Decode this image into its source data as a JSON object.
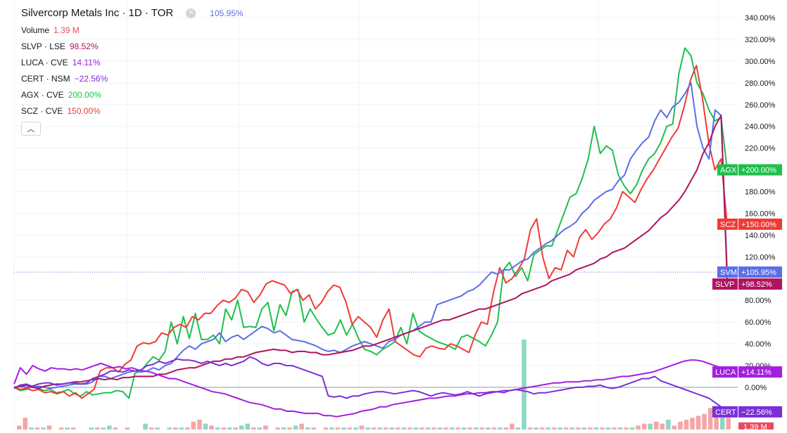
{
  "header": {
    "title": "Silvercorp Metals Inc · 1D · TOR",
    "main_change": "105.95%",
    "main_color": "#5b6ee8"
  },
  "legend": [
    {
      "label": "Volume",
      "value": "1.39 M",
      "color": "#e84a5f"
    },
    {
      "label": "SLVP · LSE",
      "value": "98.52%",
      "color": "#b0135f"
    },
    {
      "label": "LUCA · CVE",
      "value": "14.11%",
      "color": "#a31ee0"
    },
    {
      "label": "CERT · NSM",
      "value": "−22.56%",
      "color": "#7b2fd9"
    },
    {
      "label": "AGX · CVE",
      "value": "200.00%",
      "color": "#1fbf4d"
    },
    {
      "label": "SCZ · CVE",
      "value": "150.00%",
      "color": "#ef3b36"
    }
  ],
  "collapse_icon": "chevron-up-icon",
  "chart_data": {
    "type": "line",
    "ylim": [
      -30,
      345
    ],
    "yticks": [
      "340.00%",
      "320.00%",
      "300.00%",
      "280.00%",
      "260.00%",
      "240.00%",
      "220.00%",
      "200.00%",
      "180.00%",
      "160.00%",
      "140.00%",
      "120.00%",
      "80.00%",
      "60.00%",
      "40.00%",
      "20.00%",
      "0.00%"
    ],
    "ytick_values": [
      340,
      320,
      300,
      280,
      260,
      240,
      220,
      200,
      180,
      160,
      140,
      120,
      80,
      60,
      40,
      20,
      0
    ],
    "reference_value": 105.95,
    "zero_line": 0,
    "series": [
      {
        "name": "AGX",
        "color": "#1fbf4d",
        "tag": "+200.00%",
        "last": 200,
        "values": [
          0,
          -3,
          -2,
          1,
          -1,
          -3,
          -2,
          -5,
          -4,
          -2,
          -6,
          -8,
          -4,
          -7,
          -6,
          -5,
          -5,
          -3,
          -4,
          -10,
          13,
          15,
          22,
          28,
          25,
          33,
          60,
          40,
          65,
          45,
          68,
          44,
          44,
          48,
          40,
          72,
          62,
          80,
          55,
          56,
          55,
          72,
          78,
          52,
          76,
          66,
          88,
          90,
          60,
          72,
          63,
          55,
          48,
          50,
          62,
          48,
          58,
          45,
          35,
          33,
          30,
          35,
          38,
          42,
          55,
          40,
          68,
          52,
          48,
          45,
          42,
          40,
          38,
          35,
          46,
          48,
          45,
          42,
          38,
          48,
          60,
          108,
          115,
          102,
          110,
          98,
          122,
          126,
          130,
          130,
          145,
          160,
          175,
          178,
          192,
          210,
          240,
          215,
          222,
          218,
          195,
          185,
          178,
          186,
          200,
          210,
          215,
          225,
          240,
          242,
          288,
          312,
          305,
          280,
          270,
          255,
          245,
          248,
          200
        ]
      },
      {
        "name": "SCZ",
        "color": "#ef3b36",
        "tag": "+150.00%",
        "last": 150,
        "values": [
          0,
          -2,
          -1,
          -3,
          -2,
          -5,
          -4,
          -6,
          -4,
          -8,
          -5,
          -10,
          -6,
          -2,
          15,
          18,
          18,
          14,
          21,
          25,
          38,
          41,
          40,
          42,
          50,
          48,
          55,
          58,
          55,
          65,
          62,
          68,
          68,
          75,
          80,
          78,
          82,
          90,
          88,
          78,
          85,
          95,
          98,
          96,
          94,
          86,
          90,
          80,
          85,
          72,
          78,
          88,
          94,
          92,
          78,
          58,
          65,
          60,
          55,
          46,
          62,
          72,
          42,
          38,
          34,
          30,
          28,
          36,
          38,
          36,
          35,
          40,
          38,
          35,
          32,
          48,
          60,
          58,
          88,
          110,
          96,
          100,
          108,
          118,
          145,
          155,
          120,
          100,
          110,
          108,
          126,
          120,
          138,
          145,
          136,
          142,
          150,
          155,
          165,
          180,
          175,
          170,
          182,
          192,
          200,
          210,
          220,
          230,
          238,
          258,
          282,
          296,
          265,
          225,
          200,
          210,
          150
        ]
      },
      {
        "name": "SVM",
        "color": "#5b6ee8",
        "tag": "+105.95%",
        "last": 105.95,
        "values": [
          0,
          1,
          0,
          0,
          1,
          0,
          -1,
          0,
          1,
          2,
          3,
          3,
          3,
          5,
          10,
          10,
          8,
          10,
          12,
          14,
          15,
          14,
          15,
          18,
          16,
          20,
          22,
          28,
          34,
          38,
          35,
          40,
          42,
          44,
          50,
          42,
          46,
          48,
          44,
          48,
          52,
          56,
          54,
          50,
          52,
          48,
          44,
          43,
          42,
          40,
          38,
          35,
          33,
          34,
          32,
          35,
          38,
          40,
          42,
          40,
          38,
          36,
          42,
          44,
          48,
          50,
          52,
          56,
          60,
          60,
          76,
          78,
          80,
          82,
          84,
          88,
          90,
          94,
          100,
          106,
          104,
          108,
          108,
          112,
          116,
          118,
          124,
          128,
          132,
          135,
          140,
          145,
          148,
          152,
          160,
          165,
          172,
          176,
          180,
          182,
          190,
          195,
          210,
          218,
          225,
          230,
          245,
          255,
          248,
          258,
          262,
          270,
          280,
          240,
          220,
          210,
          255,
          250,
          105.95
        ]
      },
      {
        "name": "SLVP",
        "color": "#b0135f",
        "tag": "+98.52%",
        "last": 98.52,
        "values": [
          0,
          1,
          2,
          0,
          -1,
          1,
          2,
          3,
          3,
          4,
          5,
          5,
          6,
          7,
          8,
          7,
          8,
          7,
          9,
          9,
          10,
          10,
          10,
          10,
          12,
          12,
          14,
          16,
          17,
          18,
          18,
          20,
          22,
          24,
          24,
          26,
          26,
          28,
          28,
          30,
          32,
          33,
          34,
          35,
          34,
          34,
          32,
          33,
          33,
          32,
          32,
          30,
          30,
          31,
          32,
          33,
          34,
          36,
          38,
          38,
          40,
          42,
          44,
          46,
          48,
          50,
          52,
          54,
          56,
          58,
          60,
          62,
          62,
          64,
          66,
          68,
          70,
          72,
          72,
          74,
          76,
          78,
          80,
          82,
          86,
          88,
          90,
          92,
          94,
          98,
          100,
          102,
          104,
          108,
          110,
          112,
          114,
          118,
          120,
          124,
          126,
          128,
          132,
          136,
          140,
          144,
          150,
          156,
          160,
          166,
          172,
          180,
          190,
          200,
          215,
          225,
          240,
          250,
          98.52
        ]
      },
      {
        "name": "LUCA",
        "color": "#a31ee0",
        "tag": "+14.11%",
        "last": 14.11,
        "values": [
          3,
          18,
          12,
          20,
          17,
          15,
          18,
          17,
          17,
          16,
          17,
          16,
          18,
          20,
          22,
          20,
          18,
          19,
          17,
          18,
          16,
          15,
          14,
          12,
          10,
          8,
          8,
          6,
          4,
          2,
          0,
          -2,
          -4,
          -5,
          -6,
          -8,
          -10,
          -12,
          -14,
          -15,
          -16,
          -18,
          -20,
          -20,
          -22,
          -22,
          -23,
          -24,
          -24,
          -24,
          -26,
          -26,
          -27,
          -26,
          -25,
          -24,
          -22,
          -21,
          -20,
          -18,
          -18,
          -16,
          -15,
          -14,
          -13,
          -12,
          -11,
          -10,
          -10,
          -9,
          -8,
          -8,
          -7,
          -6,
          -6,
          -5,
          -5,
          -4,
          -4,
          -3,
          -3,
          -2,
          -1,
          0,
          1,
          2,
          3,
          4,
          4,
          5,
          5,
          5,
          6,
          6,
          7,
          7,
          8,
          9,
          10,
          10,
          11,
          12,
          13,
          14,
          16,
          18,
          20,
          22,
          24,
          25,
          25,
          24,
          22,
          20,
          18,
          14.11
        ]
      },
      {
        "name": "CERT",
        "color": "#7b2fd9",
        "tag": "−22.56%",
        "last": -22.56,
        "values": [
          -1,
          2,
          3,
          1,
          3,
          4,
          4,
          2,
          3,
          4,
          4,
          3,
          4,
          8,
          10,
          12,
          15,
          15,
          14,
          16,
          15,
          16,
          20,
          21,
          24,
          22,
          24,
          26,
          25,
          25,
          24,
          22,
          24,
          22,
          20,
          22,
          20,
          22,
          24,
          28,
          26,
          22,
          20,
          22,
          22,
          20,
          20,
          18,
          16,
          14,
          12,
          10,
          -8,
          -9,
          -8,
          -10,
          -8,
          -8,
          -6,
          -5,
          -4,
          -4,
          -5,
          -6,
          -5,
          -4,
          -3,
          -4,
          -6,
          -8,
          -6,
          -5,
          -6,
          -7,
          -6,
          -4,
          -6,
          -8,
          -6,
          -5,
          -4,
          -5,
          -3,
          -2,
          -3,
          -4,
          -6,
          -5,
          -5,
          -4,
          -3,
          -2,
          -1,
          0,
          0,
          1,
          1,
          2,
          0,
          -1,
          0,
          2,
          4,
          6,
          8,
          8,
          10,
          6,
          4,
          2,
          0,
          -2,
          -4,
          -6,
          -8,
          -10,
          -14,
          -18,
          -22.56
        ]
      }
    ],
    "volume": [
      2,
      6,
      1,
      1,
      1,
      2,
      0,
      1,
      1,
      1,
      0,
      0,
      1,
      1,
      1,
      2,
      1,
      0,
      1,
      0,
      0,
      3,
      1,
      1,
      0,
      1,
      1,
      1,
      1,
      4,
      5,
      3,
      2,
      1,
      1,
      1,
      1,
      2,
      3,
      1,
      1,
      2,
      0,
      1,
      1,
      1,
      2,
      3,
      1,
      1,
      0,
      1,
      1,
      1,
      1,
      1,
      1,
      2,
      1,
      1,
      1,
      1,
      1,
      1,
      1,
      1,
      1,
      1,
      1,
      1,
      1,
      1,
      1,
      1,
      1,
      1,
      1,
      1,
      1,
      1,
      1,
      1,
      3,
      1,
      46,
      1,
      1,
      1,
      1,
      1,
      1,
      1,
      1,
      1,
      1,
      1,
      1,
      1,
      1,
      1,
      1,
      1,
      1,
      2,
      3,
      3,
      4,
      3,
      5,
      2,
      4,
      5,
      6,
      7,
      8,
      11,
      12,
      9,
      6
    ],
    "volume_colors": [
      "#f4a6a6",
      "#f4a6a6",
      "#8fd6c5",
      "#f4a6a6",
      "#8fd6c5",
      "#f4a6a6",
      "#8fd6c5",
      "#f4a6a6",
      "#8fd6c5",
      "#f4a6a6",
      "#8fd6c5",
      "#f4a6a6",
      "#8fd6c5",
      "#f4a6a6",
      "#8fd6c5",
      "#8fd6c5",
      "#f4a6a6",
      "#8fd6c5",
      "#f4a6a6",
      "#8fd6c5",
      "#f4a6a6",
      "#8fd6c5",
      "#f4a6a6",
      "#8fd6c5",
      "#f4a6a6",
      "#8fd6c5",
      "#f4a6a6",
      "#8fd6c5",
      "#f4a6a6",
      "#f4a6a6",
      "#f4a6a6",
      "#8fd6c5",
      "#f4a6a6",
      "#8fd6c5",
      "#f4a6a6",
      "#8fd6c5",
      "#f4a6a6",
      "#8fd6c5",
      "#8fd6c5",
      "#f4a6a6",
      "#8fd6c5",
      "#f4a6a6",
      "#8fd6c5",
      "#f4a6a6",
      "#8fd6c5",
      "#f4a6a6",
      "#8fd6c5",
      "#f4a6a6",
      "#8fd6c5",
      "#f4a6a6",
      "#8fd6c5",
      "#f4a6a6",
      "#8fd6c5",
      "#f4a6a6",
      "#8fd6c5",
      "#f4a6a6",
      "#8fd6c5",
      "#f4a6a6",
      "#8fd6c5",
      "#f4a6a6",
      "#8fd6c5",
      "#f4a6a6",
      "#8fd6c5",
      "#f4a6a6",
      "#8fd6c5",
      "#f4a6a6",
      "#8fd6c5",
      "#f4a6a6",
      "#8fd6c5",
      "#f4a6a6",
      "#8fd6c5",
      "#f4a6a6",
      "#8fd6c5",
      "#f4a6a6",
      "#8fd6c5",
      "#f4a6a6",
      "#8fd6c5",
      "#f4a6a6",
      "#8fd6c5",
      "#f4a6a6",
      "#8fd6c5",
      "#f4a6a6",
      "#f4a6a6",
      "#8fd6c5",
      "#8fd6c5",
      "#f4a6a6",
      "#8fd6c5",
      "#f4a6a6",
      "#8fd6c5",
      "#f4a6a6",
      "#8fd6c5",
      "#f4a6a6",
      "#8fd6c5",
      "#f4a6a6",
      "#8fd6c5",
      "#f4a6a6",
      "#8fd6c5",
      "#f4a6a6",
      "#8fd6c5",
      "#f4a6a6",
      "#8fd6c5",
      "#f4a6a6",
      "#8fd6c5",
      "#f4a6a6",
      "#f4a6a6",
      "#8fd6c5",
      "#f4a6a6",
      "#f4a6a6",
      "#8fd6c5",
      "#f4a6a6",
      "#f4a6a6",
      "#f4a6a6",
      "#f4a6a6",
      "#f4a6a6",
      "#f4a6a6",
      "#f4a6a6",
      "#f4a6a6",
      "#8fd6c5",
      "#f4a6a6"
    ],
    "volume_tag": "1.39 M"
  }
}
